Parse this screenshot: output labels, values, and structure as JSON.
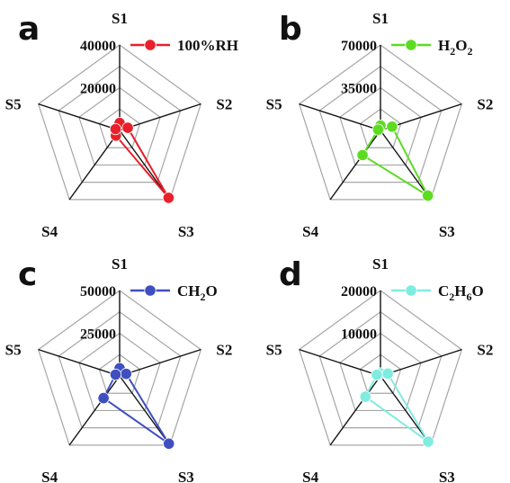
{
  "chart_data": [
    {
      "type": "radar",
      "panel_label": "a",
      "axes": [
        "S1",
        "S2",
        "S3",
        "S4",
        "S5"
      ],
      "rmax": 40000,
      "ticks": [
        "40000",
        "20000"
      ],
      "ring_levels": [
        1,
        2,
        3,
        4
      ],
      "series": [
        {
          "name_parts": [
            [
              "100%RH",
              false
            ]
          ],
          "values": [
            3500,
            4000,
            39000,
            3000,
            2000
          ]
        }
      ],
      "color": "#e8202a",
      "grid": true,
      "legend_position": "top-right"
    },
    {
      "type": "radar",
      "panel_label": "b",
      "axes": [
        "S1",
        "S2",
        "S3",
        "S4",
        "S5"
      ],
      "rmax": 70000,
      "ticks": [
        "70000",
        "35000"
      ],
      "ring_levels": [
        1,
        2,
        3,
        4
      ],
      "series": [
        {
          "name_parts": [
            [
              "H",
              false
            ],
            [
              "2",
              true
            ],
            [
              "O",
              false
            ],
            [
              "2",
              true
            ]
          ],
          "values": [
            4000,
            10000,
            66000,
            25000,
            2000
          ]
        }
      ],
      "color": "#5cdc20",
      "grid": true,
      "legend_position": "top-right"
    },
    {
      "type": "radar",
      "panel_label": "c",
      "axes": [
        "S1",
        "S2",
        "S3",
        "S4",
        "S5"
      ],
      "rmax": 50000,
      "ticks": [
        "50000",
        "25000"
      ],
      "ring_levels": [
        1,
        2,
        3,
        4
      ],
      "series": [
        {
          "name_parts": [
            [
              "CH",
              false
            ],
            [
              "2",
              true
            ],
            [
              "O",
              false
            ]
          ],
          "values": [
            4500,
            4000,
            49000,
            16000,
            2500
          ]
        }
      ],
      "color": "#3f4fc0",
      "grid": true,
      "legend_position": "top-right"
    },
    {
      "type": "radar",
      "panel_label": "d",
      "axes": [
        "S1",
        "S2",
        "S3",
        "S4",
        "S5"
      ],
      "rmax": 20000,
      "ticks": [
        "20000",
        "10000"
      ],
      "ring_levels": [
        1,
        2,
        3,
        4
      ],
      "series": [
        {
          "name_parts": [
            [
              "C",
              false
            ],
            [
              "2",
              true
            ],
            [
              "H",
              false
            ],
            [
              "6",
              true
            ],
            [
              "O",
              false
            ]
          ],
          "values": [
            600,
            1800,
            19000,
            6000,
            900
          ]
        }
      ],
      "color": "#80ece0",
      "grid": true,
      "legend_position": "top-right"
    }
  ]
}
